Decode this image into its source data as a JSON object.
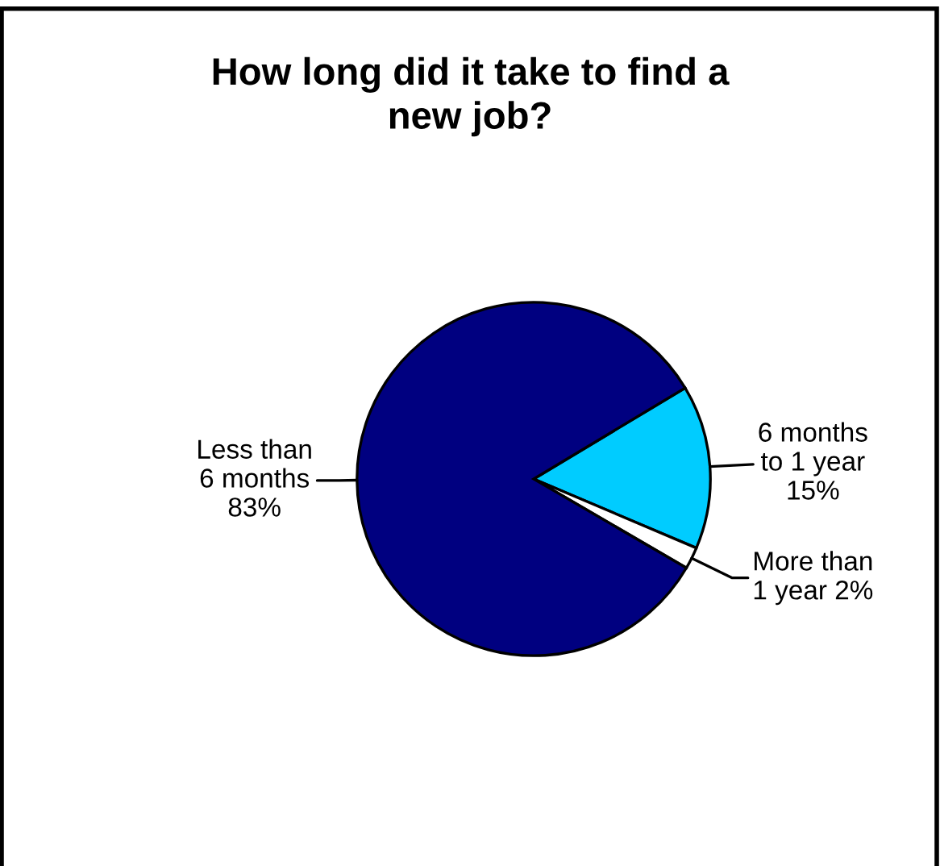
{
  "chart_data": {
    "type": "pie",
    "title": "How long did it take to find a\nnew job?",
    "categories": [
      "6 months\nto 1 year",
      "More than\n1 year",
      "Less than\n6 months"
    ],
    "values": [
      15,
      2,
      83
    ],
    "colors": [
      "#00ccff",
      "#ffffff",
      "#000080"
    ],
    "value_labels": [
      "15%",
      "2%",
      "83%"
    ]
  }
}
